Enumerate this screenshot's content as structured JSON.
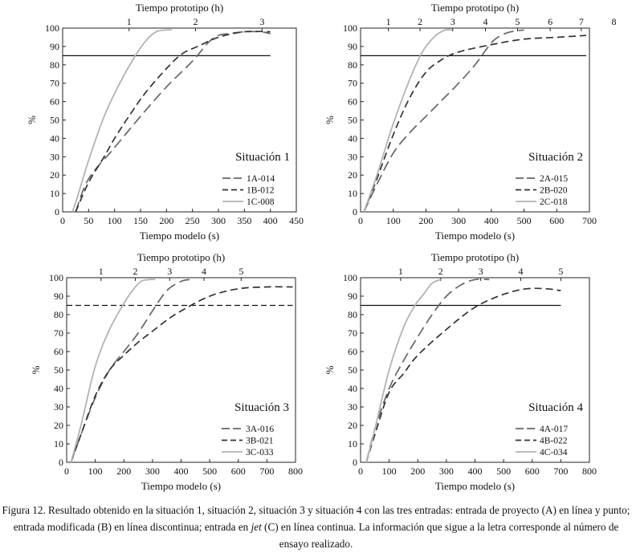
{
  "chart_data": [
    {
      "type": "line",
      "title": "Situación 1",
      "xlabel": "Tiempo modelo (s)",
      "ylabel": "%",
      "top_axis_label": "Tiempo prototipo (h)",
      "xlim": [
        0,
        450
      ],
      "ylim": [
        0,
        100
      ],
      "xticks": [
        0,
        50,
        100,
        150,
        200,
        250,
        300,
        350,
        400,
        450
      ],
      "yticks": [
        0,
        10,
        20,
        30,
        40,
        50,
        60,
        70,
        80,
        90,
        100
      ],
      "top_ticks": [
        {
          "label": "1",
          "x": 128
        },
        {
          "label": "2",
          "x": 256
        },
        {
          "label": "3",
          "x": 384
        }
      ],
      "reference_line": {
        "y": 85,
        "x_range": [
          0,
          400
        ],
        "style": "solid"
      },
      "legend_position": "bottom-right",
      "series": [
        {
          "name": "1A-014",
          "style": "dashdot",
          "color": "#666666",
          "x": [
            25,
            50,
            100,
            150,
            200,
            250,
            280,
            300,
            320,
            350,
            380,
            400
          ],
          "y": [
            0,
            18,
            35,
            52,
            68,
            82,
            92,
            96,
            97,
            98,
            98,
            97
          ]
        },
        {
          "name": "1B-012",
          "style": "dashed",
          "color": "#333333",
          "x": [
            25,
            50,
            80,
            100,
            130,
            160,
            200,
            230,
            260,
            300,
            350,
            400
          ],
          "y": [
            0,
            16,
            30,
            40,
            53,
            65,
            78,
            86,
            90,
            95,
            98,
            98
          ]
        },
        {
          "name": "1C-008",
          "style": "solid",
          "color": "#b3b3b3",
          "x": [
            18,
            25,
            50,
            80,
            110,
            140,
            160,
            180,
            200,
            210
          ],
          "y": [
            0,
            5,
            28,
            52,
            70,
            85,
            93,
            98,
            99,
            99
          ]
        }
      ]
    },
    {
      "type": "line",
      "title": "Situación 2",
      "xlabel": "Tiempo modelo (s)",
      "ylabel": "%",
      "top_axis_label": "Tiempo prototipo (h)",
      "xlim": [
        0,
        700
      ],
      "ylim": [
        0,
        100
      ],
      "xticks": [
        0,
        100,
        200,
        300,
        400,
        500,
        600,
        700
      ],
      "yticks": [
        0,
        10,
        20,
        30,
        40,
        50,
        60,
        70,
        80,
        90,
        100
      ],
      "top_ticks": [
        {
          "label": "1",
          "x": 85
        },
        {
          "label": "2",
          "x": 182
        },
        {
          "label": "3",
          "x": 282
        },
        {
          "label": "4",
          "x": 382
        },
        {
          "label": "5",
          "x": 480
        },
        {
          "label": "6",
          "x": 580
        },
        {
          "label": "7",
          "x": 675
        },
        {
          "label": "8",
          "x": 775
        }
      ],
      "reference_line": {
        "y": 85,
        "x_range": [
          0,
          690
        ],
        "style": "solid"
      },
      "legend_position": "bottom-right",
      "series": [
        {
          "name": "2A-015",
          "style": "dashdot",
          "color": "#666666",
          "x": [
            10,
            50,
            100,
            150,
            200,
            250,
            300,
            350,
            400,
            430,
            460,
            500
          ],
          "y": [
            0,
            15,
            32,
            43,
            52,
            61,
            70,
            80,
            92,
            96,
            98,
            99
          ]
        },
        {
          "name": "2B-020",
          "style": "dashed",
          "color": "#333333",
          "x": [
            10,
            50,
            100,
            150,
            200,
            250,
            300,
            400,
            500,
            600,
            690
          ],
          "y": [
            0,
            18,
            42,
            62,
            76,
            83,
            87,
            91,
            94,
            95,
            96
          ]
        },
        {
          "name": "2C-018",
          "style": "solid",
          "color": "#b3b3b3",
          "x": [
            10,
            50,
            100,
            150,
            180,
            200,
            230,
            260,
            280
          ],
          "y": [
            0,
            20,
            48,
            72,
            84,
            90,
            96,
            99,
            99
          ]
        }
      ]
    },
    {
      "type": "line",
      "title": "Situación 3",
      "xlabel": "Tiempo modelo (s)",
      "ylabel": "%",
      "top_axis_label": "Tiempo prototipo (h)",
      "xlim": [
        0,
        800
      ],
      "ylim": [
        0,
        100
      ],
      "xticks": [
        0,
        100,
        200,
        300,
        400,
        500,
        600,
        700,
        800
      ],
      "yticks": [
        0,
        10,
        20,
        30,
        40,
        50,
        60,
        70,
        80,
        90,
        100
      ],
      "top_ticks": [
        {
          "label": "1",
          "x": 120
        },
        {
          "label": "2",
          "x": 240
        },
        {
          "label": "3",
          "x": 360
        },
        {
          "label": "4",
          "x": 480
        },
        {
          "label": "5",
          "x": 610
        }
      ],
      "reference_line": {
        "y": 85,
        "x_range": [
          0,
          790
        ],
        "style": "dashed"
      },
      "legend_position": "bottom-right",
      "series": [
        {
          "name": "3A-016",
          "style": "dashdot",
          "color": "#666666",
          "x": [
            15,
            50,
            100,
            150,
            200,
            250,
            300,
            350,
            400,
            430
          ],
          "y": [
            0,
            15,
            35,
            50,
            60,
            70,
            82,
            93,
            98,
            99
          ]
        },
        {
          "name": "3B-021",
          "style": "dashed",
          "color": "#333333",
          "x": [
            15,
            50,
            100,
            150,
            200,
            250,
            300,
            350,
            400,
            500,
            600,
            700,
            790
          ],
          "y": [
            0,
            15,
            36,
            50,
            58,
            65,
            71,
            77,
            82,
            90,
            94,
            95,
            95
          ]
        },
        {
          "name": "3C-033",
          "style": "solid",
          "color": "#b3b3b3",
          "x": [
            15,
            50,
            100,
            150,
            200,
            230,
            260,
            290,
            310
          ],
          "y": [
            0,
            20,
            52,
            72,
            86,
            93,
            98,
            99,
            99
          ]
        }
      ]
    },
    {
      "type": "line",
      "title": "Situación 4",
      "xlabel": "Tiempo modelo (s)",
      "ylabel": "%",
      "top_axis_label": "Tiempo prototipo (h)",
      "xlim": [
        0,
        800
      ],
      "ylim": [
        0,
        100
      ],
      "xticks": [
        0,
        100,
        200,
        300,
        400,
        500,
        600,
        700,
        800
      ],
      "yticks": [
        0,
        10,
        20,
        30,
        40,
        50,
        60,
        70,
        80,
        90,
        100
      ],
      "top_ticks": [
        {
          "label": "1",
          "x": 140
        },
        {
          "label": "2",
          "x": 280
        },
        {
          "label": "3",
          "x": 420
        },
        {
          "label": "4",
          "x": 560
        },
        {
          "label": "5",
          "x": 700
        }
      ],
      "reference_line": {
        "y": 85,
        "x_range": [
          0,
          700
        ],
        "style": "solid"
      },
      "legend_position": "bottom-right",
      "series": [
        {
          "name": "4A-017",
          "style": "dashdot",
          "color": "#666666",
          "x": [
            20,
            50,
            100,
            150,
            200,
            250,
            300,
            350,
            400,
            450
          ],
          "y": [
            0,
            18,
            40,
            55,
            68,
            80,
            90,
            96,
            99,
            99
          ]
        },
        {
          "name": "4B-022",
          "style": "dashed",
          "color": "#333333",
          "x": [
            20,
            50,
            100,
            150,
            200,
            300,
            400,
            500,
            580,
            650,
            700
          ],
          "y": [
            0,
            15,
            38,
            48,
            58,
            72,
            84,
            91,
            94,
            94,
            93
          ]
        },
        {
          "name": "4C-034",
          "style": "solid",
          "color": "#b3b3b3",
          "x": [
            20,
            50,
            100,
            150,
            190,
            220,
            250,
            280
          ],
          "y": [
            0,
            18,
            50,
            73,
            85,
            91,
            97,
            99
          ]
        }
      ]
    }
  ],
  "caption": {
    "part1": "Figura 12. Resultado obtenido en la situación 1, situación 2, situación 3 y situación 4 con las tres entradas: entrada de proyecto (A) en línea y punto; entrada modificada (B) en línea discontinua; entrada en ",
    "jet": "jet",
    "part2": " (C) en línea continua. La información que sigue a la letra corresponde al número de ensayo realizado."
  }
}
